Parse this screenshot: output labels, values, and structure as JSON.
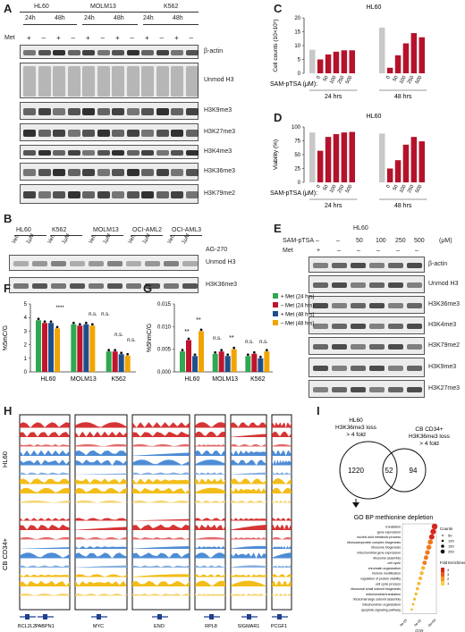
{
  "panels": {
    "A": "A",
    "B": "B",
    "C": "C",
    "D": "D",
    "E": "E",
    "F": "F",
    "G": "G",
    "H": "H",
    "I": "I"
  },
  "panelA": {
    "cell_lines": [
      "HL60",
      "MOLM13",
      "K562"
    ],
    "timepoints": [
      "24h",
      "48h",
      "24h",
      "48h",
      "24h",
      "48h"
    ],
    "met_label": "Met",
    "met_signs": [
      "+",
      "–",
      "+",
      "–",
      "+",
      "–",
      "+",
      "–",
      "+",
      "–",
      "+",
      "–"
    ],
    "rows": [
      "β-actin",
      "Unmod H3",
      "H3K9me3",
      "H3K27me3",
      "H3K4me3",
      "H3K36me3",
      "H3K79me2"
    ]
  },
  "panelB": {
    "cell_lines": [
      "HL60",
      "K562",
      "MOLM13",
      "OCI-AML2",
      "OCI-AML3"
    ],
    "treatments": [
      "Veh",
      "1μM",
      "Veh",
      "1μM",
      "Veh",
      "1μM",
      "Veh",
      "1μM",
      "Veh",
      "1μM"
    ],
    "drug": "AG-270",
    "rows": [
      "Unmod H3",
      "H3K36me3"
    ]
  },
  "panelC": {
    "chart_data": {
      "type": "bar",
      "title": "HL60",
      "ylabel": "Cell counts (10×10⁵)",
      "xlabel": "SAM-pTSA (μM):",
      "ylim": [
        0,
        20
      ],
      "yticks": [
        "0",
        "5",
        "10",
        "15",
        "20"
      ],
      "groups": [
        "24 hrs",
        "48 hrs"
      ],
      "categories": [
        "",
        "0",
        "50",
        "100",
        "250",
        "500"
      ],
      "series": [
        {
          "values": [
            8.5,
            5.0,
            6.8,
            7.8,
            8.3,
            8.3
          ]
        },
        {
          "values": [
            16.5,
            2.0,
            6.5,
            10.8,
            14.5,
            13.0
          ]
        }
      ],
      "colors": {
        "control": "#c8c8c8",
        "treated": "#b5122b"
      }
    }
  },
  "panelD": {
    "chart_data": {
      "type": "bar",
      "title": "HL60",
      "ylabel": "Viability (%)",
      "xlabel": "SAM-pTSA (μM):",
      "ylim": [
        0,
        100
      ],
      "yticks": [
        "0",
        "25",
        "50",
        "75",
        "100"
      ],
      "groups": [
        "24 hrs",
        "48 hrs"
      ],
      "categories": [
        "",
        "0",
        "50",
        "100",
        "250",
        "500"
      ],
      "series": [
        {
          "values": [
            90,
            57,
            82,
            87,
            90,
            91
          ]
        },
        {
          "values": [
            88,
            25,
            40,
            68,
            82,
            74
          ]
        }
      ],
      "colors": {
        "control": "#c8c8c8",
        "treated": "#b5122b"
      }
    }
  },
  "panelE": {
    "title": "HL60",
    "drug": "SAM-pTSA",
    "unit": "(μM)",
    "met_label": "Met",
    "doses": [
      "–",
      "–",
      "50",
      "100",
      "250",
      "500"
    ],
    "met_signs": [
      "+",
      "–",
      "–",
      "–",
      "–",
      "–"
    ],
    "rows": [
      "β-actin",
      "Unmod H3",
      "H3K36me3",
      "H3K4me3",
      "H3K79me2",
      "H3K9me3",
      "H3K27me3"
    ]
  },
  "panelF": {
    "chart_data": {
      "type": "bar",
      "ylabel": "%5mC/G",
      "ylim": [
        0,
        5
      ],
      "yticks": [
        "0",
        "1",
        "2",
        "3",
        "4",
        "5"
      ],
      "categories": [
        "HL60",
        "MOLM13",
        "K562"
      ],
      "series": [
        {
          "name": "+ Met (24 hrs)",
          "values": [
            3.8,
            3.5,
            1.5
          ]
        },
        {
          "name": "– Met (24 hrs)",
          "values": [
            3.6,
            3.4,
            1.5
          ]
        },
        {
          "name": "+ Met (48 hrs)",
          "values": [
            3.6,
            3.5,
            1.3
          ]
        },
        {
          "name": "– Met (48 hrs)",
          "values": [
            3.2,
            3.4,
            1.2
          ]
        }
      ],
      "annotations": [
        "****",
        "n.s.",
        "n.s.",
        "n.s.",
        "n.s."
      ]
    }
  },
  "panelG": {
    "chart_data": {
      "type": "bar",
      "ylabel": "%5hmC/G",
      "ylim": [
        0,
        0.015
      ],
      "yticks": [
        "0.000",
        "0.005",
        "0.010",
        "0.015"
      ],
      "categories": [
        "HL60",
        "MOLM13",
        "K562"
      ],
      "series": [
        {
          "name": "+ Met (24 hrs)",
          "values": [
            0.0045,
            0.004,
            0.0035
          ]
        },
        {
          "name": "– Met (24 hrs)",
          "values": [
            0.007,
            0.0045,
            0.004
          ]
        },
        {
          "name": "+ Met (48 hrs)",
          "values": [
            0.0035,
            0.0035,
            0.003
          ]
        },
        {
          "name": "– Met (48 hrs)",
          "values": [
            0.009,
            0.005,
            0.0045
          ]
        }
      ],
      "annotations": [
        "**",
        "**",
        "n.s.",
        "**",
        "n.s.",
        "n.s."
      ],
      "legend": [
        "+ Met (24 hrs)",
        "– Met (24 hrs)",
        "+ Met (48 hrs)",
        "– Met (48 hrs)"
      ],
      "colors": [
        "#2fa84f",
        "#c0142c",
        "#1f4e8c",
        "#f2a400"
      ]
    }
  },
  "panelH": {
    "row_groups": [
      "HL60",
      "CB CD34+"
    ],
    "genes": [
      "BCL2L2",
      "PABPN1",
      "MYC",
      "ENO",
      "RPL8",
      "SIGMAR1",
      "PCGF1"
    ]
  },
  "panelI": {
    "venn_left": "HL60\nH3K36me3 loss\n> 4 fold",
    "venn_left_lines": [
      "HL60",
      "H3K36me3 loss",
      "> 4 fold"
    ],
    "venn_right_lines": [
      "CB CD34+",
      "H3K36me3 loss",
      "> 4 fold"
    ],
    "left_only": "1220",
    "overlap": "52",
    "right_only": "94",
    "go_title": "GO BP methionine depletion",
    "go_terms": [
      "translation",
      "gene expression",
      "nucleic acid metabolic process",
      "ribonucleoprotein complex biogenesis",
      "ribosome biogenesis",
      "mitochondrial gene expression",
      "ribosome assembly",
      "cell cycle",
      "chromatin organization",
      "histone modification",
      "regulation of protein stability",
      "cell cycle process",
      "ribosomal small subunit biogenesis",
      "mitochondrial translation",
      "ribosomal large subunit assembly",
      "mitochondrion organization",
      "apoptotic signaling pathway"
    ],
    "fdr_label": "FDR",
    "fdr_ticks": [
      "4e-03",
      "4e-02",
      "0e+00"
    ],
    "legend_counts_title": "Counts",
    "legend_counts": [
      "50",
      "100",
      "150",
      "250"
    ],
    "legend_fold_title": "Fold Enrichment",
    "legend_fold": [
      "4",
      "3",
      "2",
      "1"
    ]
  }
}
